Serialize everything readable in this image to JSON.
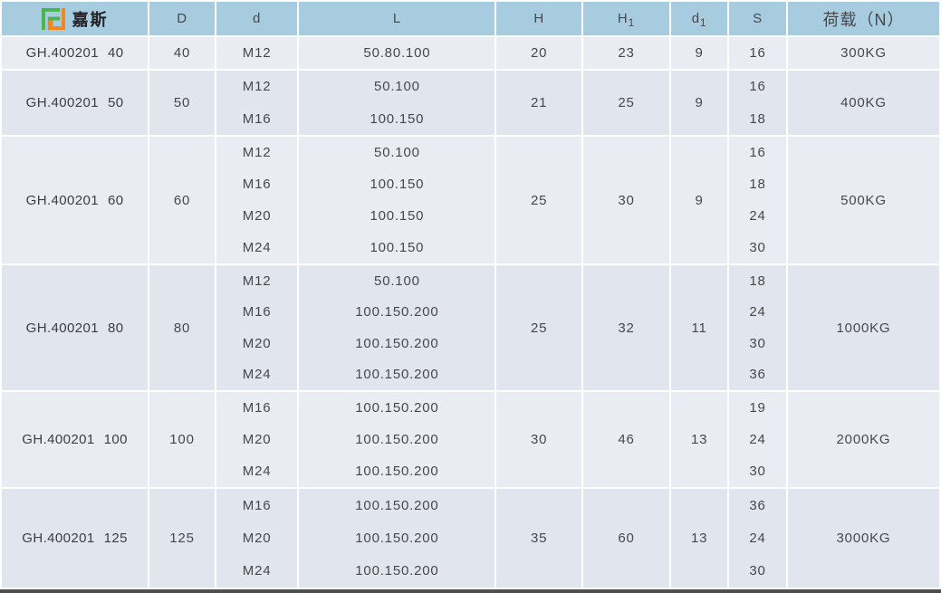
{
  "brand": {
    "name": "嘉斯",
    "logo_colors": {
      "green": "#45b649",
      "orange": "#f0861c"
    }
  },
  "header": {
    "columns": [
      {
        "label": "D"
      },
      {
        "label": "d"
      },
      {
        "label": "L"
      },
      {
        "label": "H"
      },
      {
        "label": "H",
        "sub": "1"
      },
      {
        "label": "d",
        "sub": "1"
      },
      {
        "label": "S"
      },
      {
        "label": "荷载（N）"
      }
    ]
  },
  "table": {
    "rows": [
      {
        "model": "GH.400201",
        "size": "40",
        "D": "40",
        "d": [
          "M12"
        ],
        "L": [
          "50.80.100"
        ],
        "H": "20",
        "H1": "23",
        "d1": "9",
        "S": [
          "16"
        ],
        "load": "300KG"
      },
      {
        "model": "GH.400201",
        "size": "50",
        "D": "50",
        "d": [
          "M12",
          "M16"
        ],
        "L": [
          "50.100",
          "100.150"
        ],
        "H": "21",
        "H1": "25",
        "d1": "9",
        "S": [
          "16",
          "18"
        ],
        "load": "400KG"
      },
      {
        "model": "GH.400201",
        "size": "60",
        "D": "60",
        "d": [
          "M12",
          "M16",
          "M20",
          "M24"
        ],
        "L": [
          "50.100",
          "100.150",
          "100.150",
          "100.150"
        ],
        "H": "25",
        "H1": "30",
        "d1": "9",
        "S": [
          "16",
          "18",
          "24",
          "30"
        ],
        "load": "500KG"
      },
      {
        "model": "GH.400201",
        "size": "80",
        "D": "80",
        "d": [
          "M12",
          "M16",
          "M20",
          "M24"
        ],
        "L": [
          "50.100",
          "100.150.200",
          "100.150.200",
          "100.150.200"
        ],
        "H": "25",
        "H1": "32",
        "d1": "11",
        "S": [
          "18",
          "24",
          "30",
          "36"
        ],
        "load": "1000KG"
      },
      {
        "model": "GH.400201",
        "size": "100",
        "D": "100",
        "d": [
          "M16",
          "M20",
          "M24"
        ],
        "L": [
          "100.150.200",
          "100.150.200",
          "100.150.200"
        ],
        "H": "30",
        "H1": "46",
        "d1": "13",
        "S": [
          "19",
          "24",
          "30"
        ],
        "load": "2000KG"
      },
      {
        "model": "GH.400201",
        "size": "125",
        "D": "125",
        "d": [
          "M16",
          "M20",
          "M24"
        ],
        "L": [
          "100.150.200",
          "100.150.200",
          "100.150.200"
        ],
        "H": "35",
        "H1": "60",
        "d1": "13",
        "S": [
          "36",
          "24",
          "30"
        ],
        "load": "3000KG"
      }
    ]
  }
}
